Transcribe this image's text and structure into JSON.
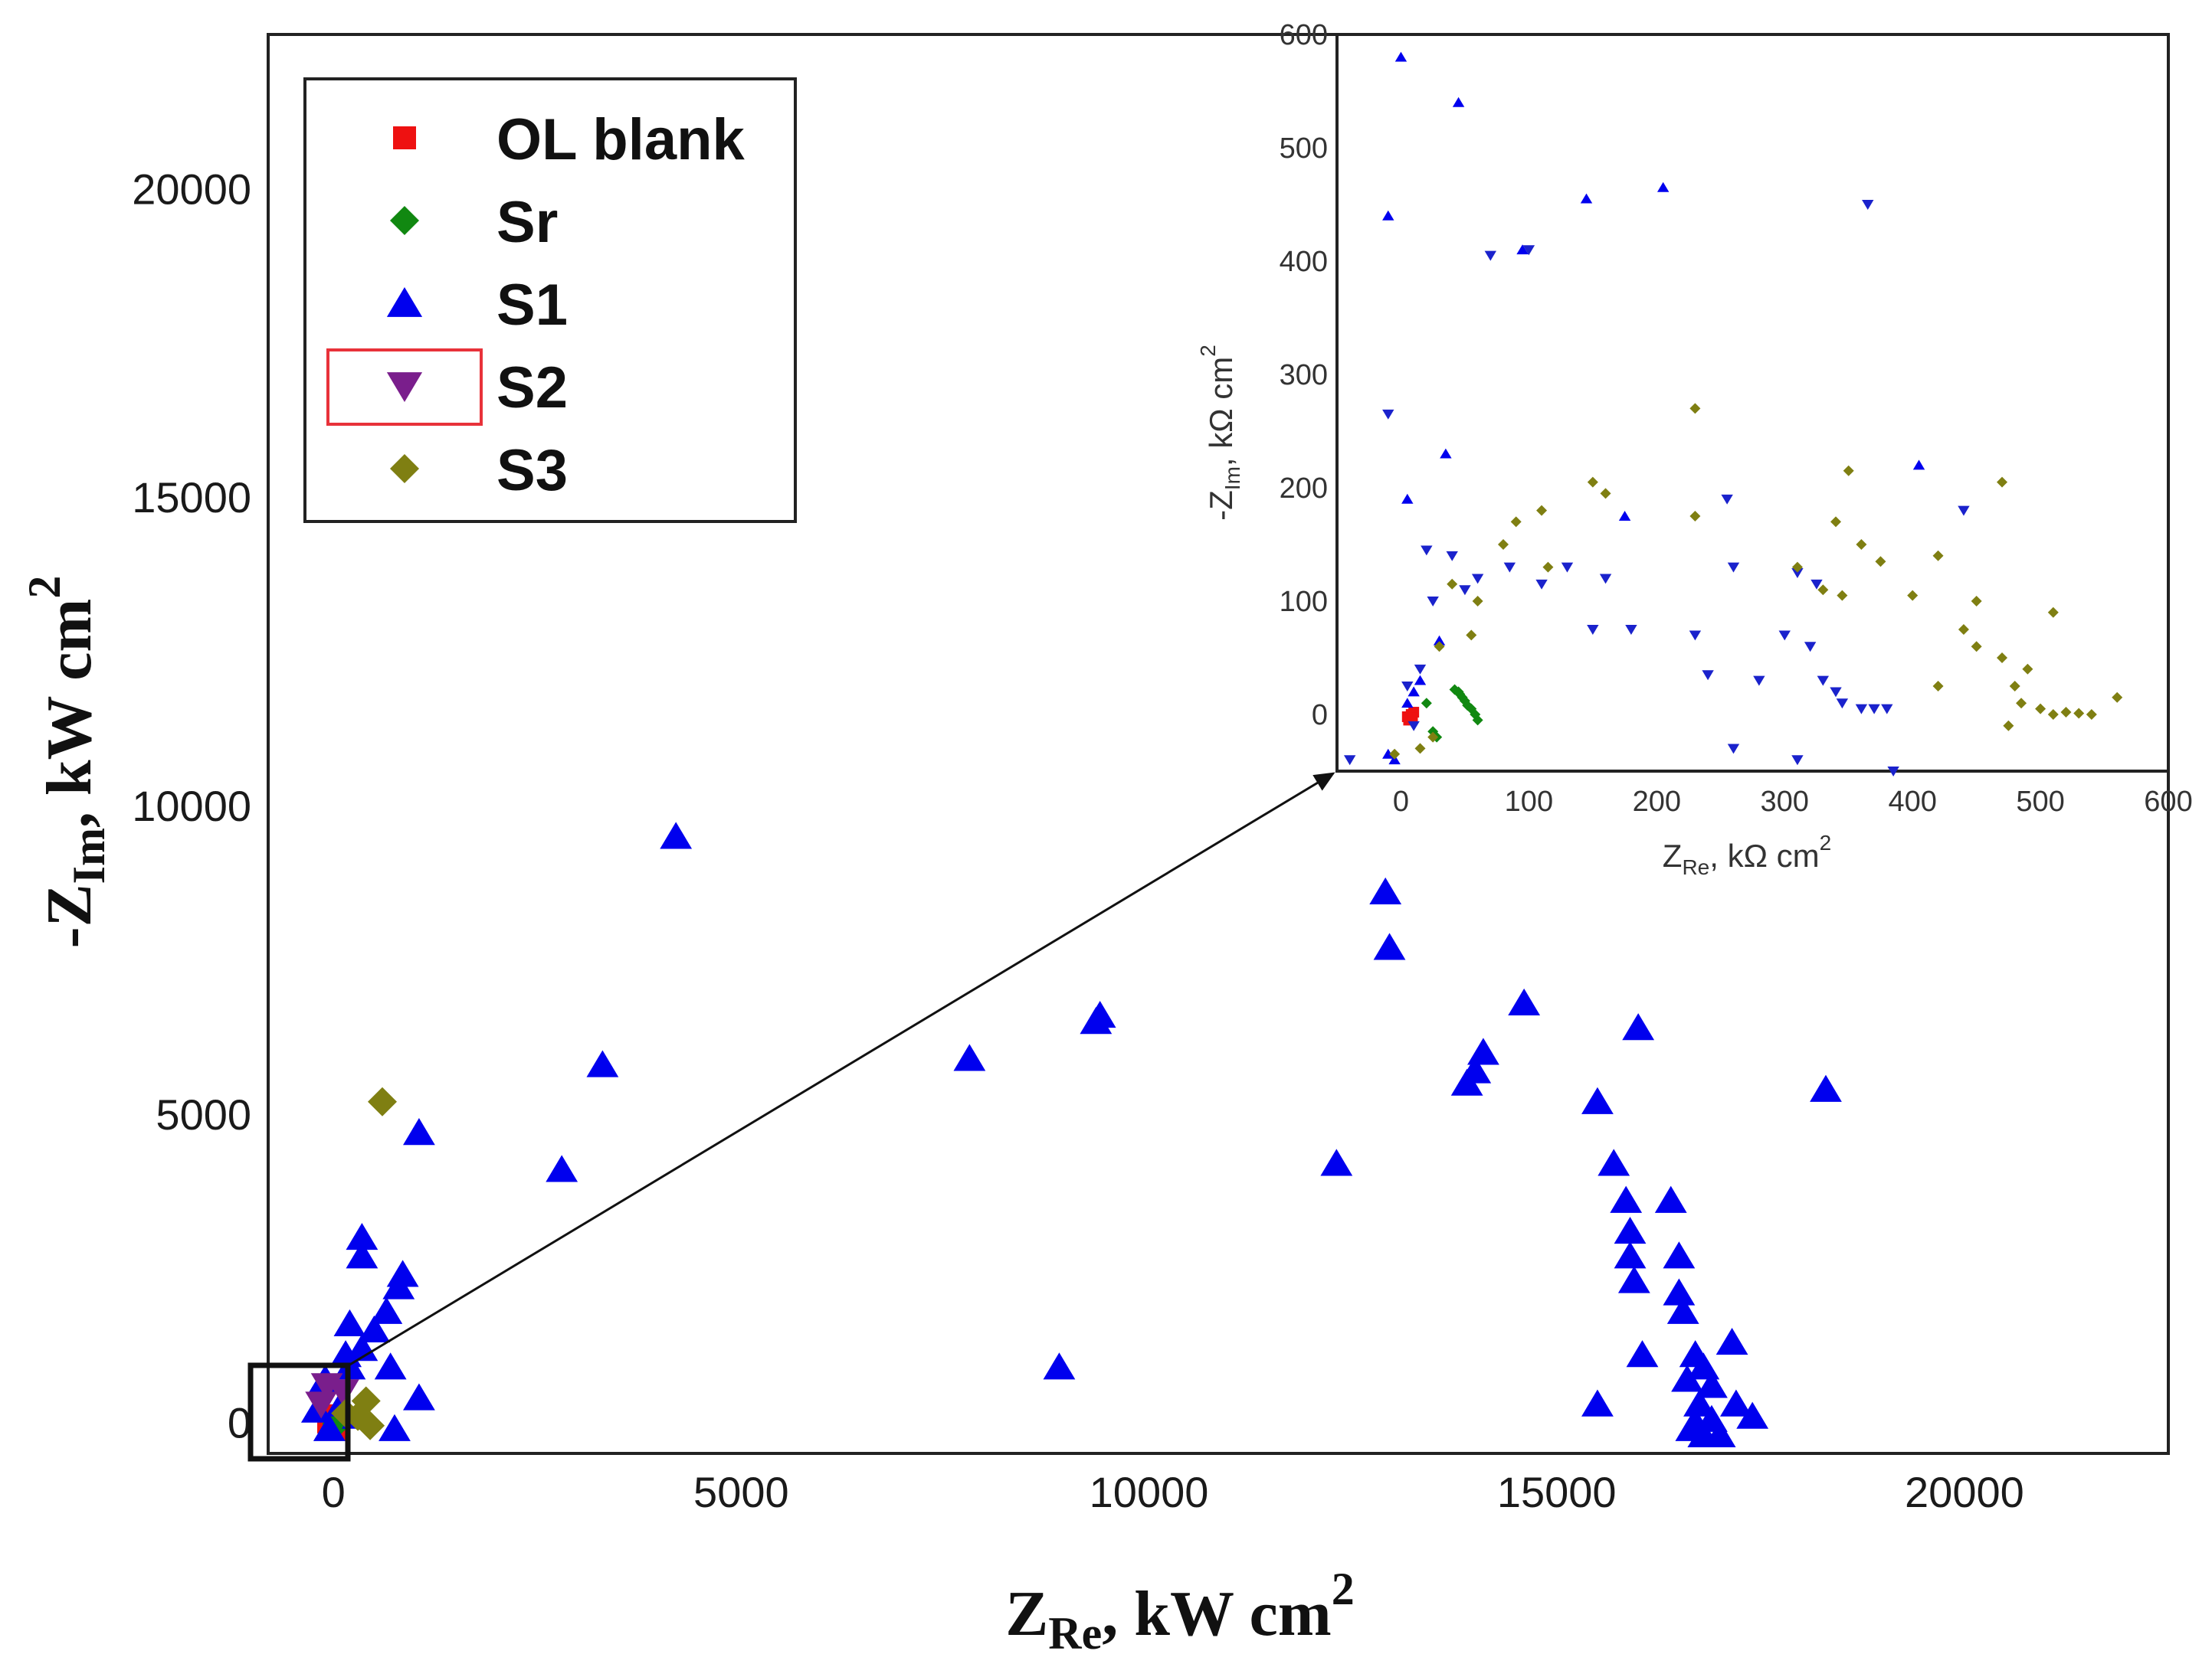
{
  "chart_data": [
    {
      "id": "main",
      "type": "scatter",
      "title": "",
      "xlabel": {
        "main": "Z",
        "sub": "Re",
        "rest": ", kW cm",
        "sup": "2"
      },
      "ylabel": {
        "prefix": "-Z",
        "sub": "Im",
        "rest": ", kW cm",
        "sup": "2"
      },
      "xlim": [
        -800,
        22500
      ],
      "ylim": [
        -500,
        22500
      ],
      "xticks": [
        0,
        5000,
        10000,
        15000,
        20000
      ],
      "yticks": [
        0,
        5000,
        10000,
        15000,
        20000
      ],
      "legend_position": "top-left",
      "series": [
        {
          "name": "OL blank",
          "color": "#ee1111",
          "marker": "square",
          "points": [
            [
              0,
              0
            ],
            [
              10,
              -60
            ],
            [
              -20,
              60
            ],
            [
              20,
              20
            ]
          ]
        },
        {
          "name": "Sr",
          "color": "#118811",
          "marker": "diamond",
          "points": [
            [
              20,
              40
            ],
            [
              40,
              -20
            ],
            [
              60,
              30
            ]
          ]
        },
        {
          "name": "S1",
          "color": "#0000ee",
          "marker": "triangle-up",
          "points": [
            [
              4200,
              9500
            ],
            [
              12900,
              8600
            ],
            [
              12950,
              7700
            ],
            [
              14600,
              6800
            ],
            [
              9400,
              6600
            ],
            [
              9350,
              6500
            ],
            [
              16000,
              6400
            ],
            [
              7800,
              5900
            ],
            [
              3300,
              5800
            ],
            [
              14100,
              6000
            ],
            [
              14000,
              5700
            ],
            [
              13900,
              5500
            ],
            [
              15500,
              5200
            ],
            [
              18300,
              5400
            ],
            [
              1050,
              4700
            ],
            [
              2800,
              4100
            ],
            [
              12300,
              4200
            ],
            [
              15700,
              4200
            ],
            [
              15850,
              3600
            ],
            [
              16400,
              3600
            ],
            [
              15900,
              3100
            ],
            [
              15900,
              2700
            ],
            [
              16500,
              2700
            ],
            [
              15950,
              2300
            ],
            [
              16500,
              2100
            ],
            [
              16550,
              1800
            ],
            [
              17150,
              1300
            ],
            [
              16050,
              1100
            ],
            [
              16700,
              1100
            ],
            [
              16800,
              900
            ],
            [
              16600,
              700
            ],
            [
              16900,
              600
            ],
            [
              15500,
              300
            ],
            [
              16750,
              300
            ],
            [
              17200,
              300
            ],
            [
              17400,
              100
            ],
            [
              16900,
              50
            ],
            [
              16700,
              0
            ],
            [
              16650,
              -100
            ],
            [
              16800,
              -200
            ],
            [
              17000,
              -200
            ],
            [
              8900,
              900
            ],
            [
              350,
              3000
            ],
            [
              350,
              2700
            ],
            [
              850,
              2400
            ],
            [
              800,
              2200
            ],
            [
              650,
              1800
            ],
            [
              200,
              1600
            ],
            [
              500,
              1500
            ],
            [
              350,
              1200
            ],
            [
              150,
              1100
            ],
            [
              700,
              900
            ],
            [
              1050,
              400
            ],
            [
              750,
              -100
            ],
            [
              -100,
              700
            ],
            [
              -200,
              200
            ],
            [
              100,
              300
            ],
            [
              300,
              100
            ],
            [
              -50,
              -100
            ],
            [
              200,
              900
            ]
          ]
        },
        {
          "name": "S2",
          "color": "#7a1e8c",
          "marker": "triangle-down",
          "points": [
            [
              -80,
              600
            ],
            [
              120,
              500
            ],
            [
              -150,
              300
            ]
          ]
        },
        {
          "name": "S3",
          "color": "#7f7f12",
          "marker": "diamond",
          "points": [
            [
              600,
              5200
            ],
            [
              400,
              350
            ],
            [
              450,
              -50
            ],
            [
              300,
              100
            ],
            [
              150,
              150
            ]
          ]
        }
      ]
    },
    {
      "id": "inset",
      "type": "scatter",
      "title": "",
      "xlabel": {
        "main": "Z",
        "sub": "Re",
        "rest": ", kΩ cm",
        "sup": "2"
      },
      "ylabel": {
        "prefix": "-Z",
        "sub": "Im",
        "rest": ", kΩ cm",
        "sup": "2"
      },
      "xlim": [
        -50,
        600
      ],
      "ylim": [
        -50,
        600
      ],
      "xticks": [
        0,
        100,
        200,
        300,
        400,
        500,
        600
      ],
      "yticks": [
        0,
        100,
        200,
        300,
        400,
        500,
        600
      ],
      "series": [
        {
          "name": "OL blank",
          "color": "#ee1111",
          "marker": "square",
          "points": [
            [
              5,
              -2
            ],
            [
              8,
              0
            ],
            [
              10,
              2
            ],
            [
              6,
              -5
            ],
            [
              9,
              -3
            ]
          ]
        },
        {
          "name": "Sr",
          "color": "#118811",
          "marker": "diamond",
          "points": [
            [
              45,
              20
            ],
            [
              48,
              15
            ],
            [
              50,
              12
            ],
            [
              52,
              8
            ],
            [
              55,
              5
            ],
            [
              58,
              0
            ],
            [
              60,
              -5
            ],
            [
              46,
              18
            ],
            [
              42,
              22
            ],
            [
              25,
              -15
            ],
            [
              28,
              -20
            ],
            [
              20,
              10
            ]
          ]
        },
        {
          "name": "S1",
          "color": "#0000ee",
          "marker": "triangle-up",
          "points": [
            [
              0,
              580
            ],
            [
              45,
              540
            ],
            [
              205,
              465
            ],
            [
              -10,
              440
            ],
            [
              145,
              455
            ],
            [
              95,
              410
            ],
            [
              35,
              230
            ],
            [
              5,
              190
            ],
            [
              175,
              175
            ],
            [
              405,
              220
            ],
            [
              30,
              65
            ],
            [
              15,
              30
            ],
            [
              10,
              20
            ],
            [
              5,
              10
            ],
            [
              -5,
              -40
            ],
            [
              -10,
              -35
            ]
          ]
        },
        {
          "name": "S2",
          "color": "#1a22cc",
          "marker": "triangle-down",
          "points": [
            [
              365,
              450
            ],
            [
              70,
              405
            ],
            [
              100,
              410
            ],
            [
              -10,
              265
            ],
            [
              255,
              190
            ],
            [
              440,
              180
            ],
            [
              20,
              145
            ],
            [
              40,
              140
            ],
            [
              60,
              120
            ],
            [
              85,
              130
            ],
            [
              130,
              130
            ],
            [
              260,
              130
            ],
            [
              310,
              125
            ],
            [
              160,
              120
            ],
            [
              110,
              115
            ],
            [
              325,
              115
            ],
            [
              50,
              110
            ],
            [
              25,
              100
            ],
            [
              180,
              75
            ],
            [
              150,
              75
            ],
            [
              230,
              70
            ],
            [
              300,
              70
            ],
            [
              320,
              60
            ],
            [
              240,
              35
            ],
            [
              280,
              30
            ],
            [
              330,
              30
            ],
            [
              340,
              20
            ],
            [
              345,
              10
            ],
            [
              360,
              5
            ],
            [
              370,
              5
            ],
            [
              380,
              5
            ],
            [
              260,
              -30
            ],
            [
              310,
              -40
            ],
            [
              385,
              -50
            ],
            [
              15,
              40
            ],
            [
              5,
              25
            ],
            [
              10,
              -10
            ],
            [
              -40,
              -40
            ]
          ]
        },
        {
          "name": "S3",
          "color": "#7f7f12",
          "marker": "diamond",
          "points": [
            [
              230,
              270
            ],
            [
              350,
              215
            ],
            [
              470,
              205
            ],
            [
              150,
              205
            ],
            [
              160,
              195
            ],
            [
              110,
              180
            ],
            [
              230,
              175
            ],
            [
              90,
              170
            ],
            [
              340,
              170
            ],
            [
              80,
              150
            ],
            [
              360,
              150
            ],
            [
              375,
              135
            ],
            [
              115,
              130
            ],
            [
              40,
              115
            ],
            [
              420,
              140
            ],
            [
              310,
              130
            ],
            [
              330,
              110
            ],
            [
              345,
              105
            ],
            [
              400,
              105
            ],
            [
              60,
              100
            ],
            [
              450,
              100
            ],
            [
              510,
              90
            ],
            [
              440,
              75
            ],
            [
              30,
              60
            ],
            [
              55,
              70
            ],
            [
              450,
              60
            ],
            [
              470,
              50
            ],
            [
              490,
              40
            ],
            [
              480,
              25
            ],
            [
              420,
              25
            ],
            [
              560,
              15
            ],
            [
              500,
              5
            ],
            [
              510,
              0
            ],
            [
              520,
              2
            ],
            [
              530,
              1
            ],
            [
              540,
              0
            ],
            [
              485,
              10
            ],
            [
              475,
              -10
            ],
            [
              25,
              -20
            ],
            [
              15,
              -30
            ],
            [
              -5,
              -35
            ]
          ]
        }
      ]
    }
  ]
}
